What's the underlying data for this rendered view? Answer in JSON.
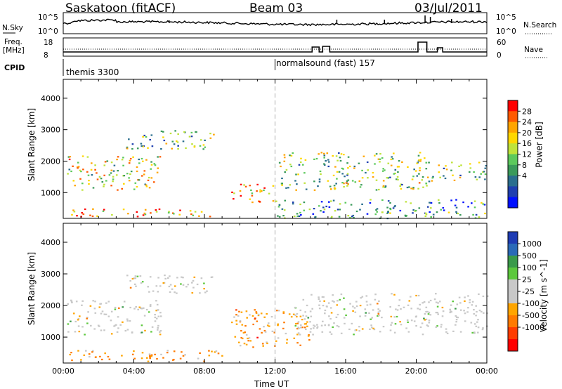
{
  "header": {
    "radar": "Saskatoon (fitACF)",
    "beam": "Beam 03",
    "date": "03/Jul/2011"
  },
  "top_panels": {
    "nsky_label": "N.Sky",
    "nsky_top": "10^5",
    "nsky_bottom": "10^0",
    "nsearch_label": "N.Search",
    "nsearch_top": "10^5",
    "nsearch_bottom": "10^0",
    "freq_label_1": "Freq.",
    "freq_label_2": "[MHz]",
    "freq_top": "18",
    "freq_bottom": "8",
    "nave_label": "Nave",
    "nave_top": "60",
    "nave_bottom": "0",
    "cpid_label": "CPID",
    "cpid_segments": [
      {
        "name": "themis 3300",
        "start_hour": 0
      },
      {
        "name": "normalsound (fast) 157",
        "start_hour": 12
      }
    ]
  },
  "chart_data": [
    {
      "type": "heatmap",
      "panel": "power",
      "ylabel": "Slant Range [km]",
      "xlabel": "",
      "ylim": [
        180,
        4600
      ],
      "yticks": [
        1000,
        2000,
        3000,
        4000
      ],
      "xlim": [
        "00:00",
        "24:00"
      ],
      "colorbar": {
        "label": "Power [dB]",
        "ticks": [
          "28",
          "24",
          "20",
          "16",
          "12",
          "8",
          "4"
        ],
        "colors": [
          "#ff0000",
          "#ff5a00",
          "#ffa500",
          "#ffd700",
          "#bfe33a",
          "#5cc95c",
          "#3a9a5a",
          "#2a6e8e",
          "#1f3fb0",
          "#0010ff"
        ]
      },
      "echo_bands": [
        {
          "t0": 0.3,
          "t1": 9,
          "r0": 250,
          "r1": 500,
          "level": 0.8
        },
        {
          "t0": 0.2,
          "t1": 5.5,
          "r0": 1100,
          "r1": 2200,
          "level": 0.6
        },
        {
          "t0": 3.5,
          "t1": 8.5,
          "r0": 2400,
          "r1": 3000,
          "level": 0.45
        },
        {
          "t0": 9.5,
          "t1": 12,
          "r0": 700,
          "r1": 1300,
          "level": 0.75
        },
        {
          "t0": 12.2,
          "t1": 21,
          "r0": 1100,
          "r1": 2300,
          "level": 0.5
        },
        {
          "t0": 21.2,
          "t1": 24,
          "r0": 1400,
          "r1": 2000,
          "level": 0.45
        },
        {
          "t0": 12,
          "t1": 24,
          "r0": 200,
          "r1": 800,
          "level": 0.3
        }
      ]
    },
    {
      "type": "heatmap",
      "panel": "velocity",
      "ylabel": "Slant Range [km]",
      "xlabel": "Time UT",
      "ylim": [
        180,
        4600
      ],
      "yticks": [
        1000,
        2000,
        3000,
        4000
      ],
      "xticks": [
        "00:00",
        "04:00",
        "08:00",
        "12:00",
        "16:00",
        "20:00",
        "00:00"
      ],
      "colorbar": {
        "label": "Velocity [m s^-1]",
        "ticks": [
          "1000",
          "500",
          "100",
          "25",
          "-25",
          "-100",
          "-500",
          "-1000"
        ],
        "colors": [
          "#1e3cb4",
          "#2a6ab8",
          "#3a9a4a",
          "#5cc83c",
          "#c8c8c8",
          "#c8c8c8",
          "#ffa500",
          "#ff7a00",
          "#ff3c00",
          "#ff0000"
        ]
      },
      "echo_bands": [
        {
          "t0": 0.2,
          "t1": 5.5,
          "r0": 1100,
          "r1": 2200,
          "level": 0.5
        },
        {
          "t0": 3.5,
          "t1": 8.5,
          "r0": 2400,
          "r1": 3000,
          "level": 0.5
        },
        {
          "t0": 0.3,
          "t1": 9,
          "r0": 250,
          "r1": 600,
          "level": 0.7
        },
        {
          "t0": 9.5,
          "t1": 14,
          "r0": 700,
          "r1": 1900,
          "level": 0.85
        },
        {
          "t0": 13,
          "t1": 24,
          "r0": 1100,
          "r1": 2400,
          "level": 0.5
        }
      ]
    }
  ]
}
